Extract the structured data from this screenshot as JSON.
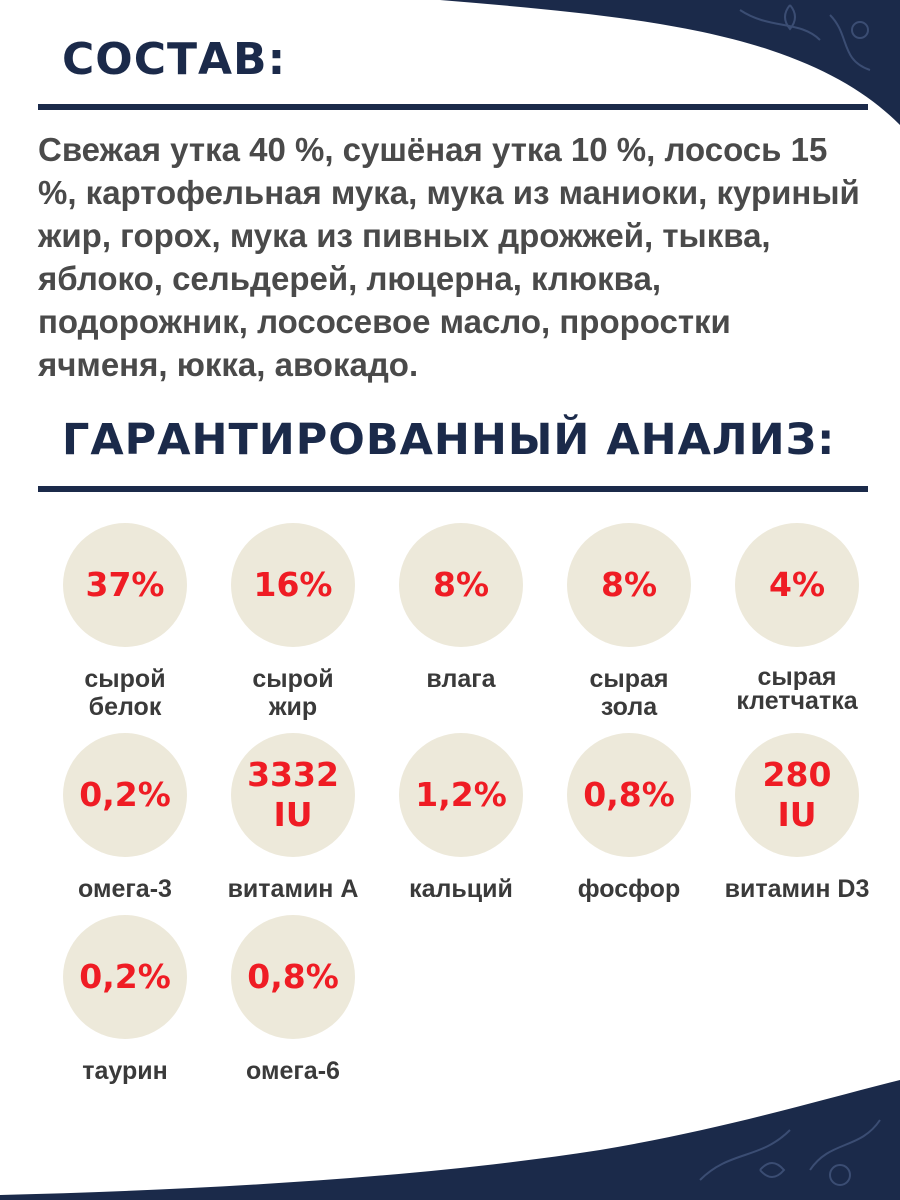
{
  "composition": {
    "title": "СОСТАВ:",
    "text": "Свежая утка 40 %, сушёная утка 10 %, лосось 15 %, картофельная мука, мука из маниоки, куриный жир, горох, мука из пивных дрожжей, тыква, яблоко, сельдерей, люцерна, клюква, подорожник, лососевое масло, проростки ячменя, юкка, авокадо."
  },
  "analysis": {
    "title": "ГАРАНТИРОВАННЫЙ АНАЛИЗ:",
    "items": [
      {
        "value": "37%",
        "label": "сырой\nбелок"
      },
      {
        "value": "16%",
        "label": "сырой\nжир"
      },
      {
        "value": "8%",
        "label": "влага"
      },
      {
        "value": "8%",
        "label": "сырая\nзола"
      },
      {
        "value": "4%",
        "label": "сырая\nклетчатка"
      },
      {
        "value": "0,2%",
        "label": "омега-3"
      },
      {
        "value": "3332\nIU",
        "label": "витамин A"
      },
      {
        "value": "1,2%",
        "label": "кальций"
      },
      {
        "value": "0,8%",
        "label": "фосфор"
      },
      {
        "value": "280\nIU",
        "label": "витамин D3"
      },
      {
        "value": "0,2%",
        "label": "таурин"
      },
      {
        "value": "0,8%",
        "label": "омега-6"
      }
    ]
  },
  "colors": {
    "navy": "#1b2a4a",
    "accent_red": "#ef1c24",
    "circle_bg": "#ede9da",
    "body_text": "#4a4a4a"
  }
}
